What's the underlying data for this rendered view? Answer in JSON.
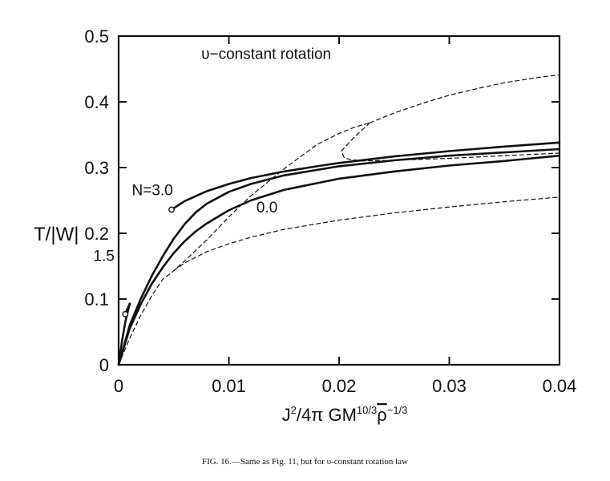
{
  "chart_data": {
    "type": "line",
    "title": "",
    "xlabel_parts": [
      "J",
      "2",
      "/4π GM",
      "10/3",
      "ρ",
      "−1/3"
    ],
    "ylabel": "T/|W|",
    "xlim": [
      0,
      0.04
    ],
    "ylim": [
      0,
      0.5
    ],
    "x_ticks": [
      0,
      0.01,
      0.02,
      0.03,
      0.04
    ],
    "x_tick_labels": [
      "0",
      "0.01",
      "0.02",
      "0.03",
      "0.04"
    ],
    "y_ticks": [
      0,
      0.1,
      0.2,
      0.3,
      0.4,
      0.5
    ],
    "y_tick_labels": [
      "0",
      "0.1",
      "0.2",
      "0.3",
      "0.4",
      "0.5"
    ],
    "grid": false,
    "annotations": [
      {
        "text": "υ−constant rotation",
        "x": 0.0075,
        "y": 0.465
      },
      {
        "text": "N=3.0",
        "x": 0.0012,
        "y": 0.258
      },
      {
        "text": "1.5",
        "x": -0.0023,
        "y": 0.158
      },
      {
        "text": "0.0",
        "x": 0.0125,
        "y": 0.232
      }
    ],
    "series": [
      {
        "name": "N=3.0",
        "style": "solid",
        "start_marker": "open-circle",
        "x": [
          0.0048,
          0.006,
          0.008,
          0.01,
          0.012,
          0.015,
          0.018,
          0.02,
          0.025,
          0.03,
          0.035,
          0.04
        ],
        "y": [
          0.236,
          0.249,
          0.264,
          0.275,
          0.284,
          0.294,
          0.302,
          0.307,
          0.317,
          0.325,
          0.332,
          0.338
        ]
      },
      {
        "name": "1.5",
        "style": "solid",
        "x": [
          0,
          0.001,
          0.002,
          0.003,
          0.004,
          0.005,
          0.006,
          0.007,
          0.008,
          0.01,
          0.012,
          0.015,
          0.02,
          0.025,
          0.03,
          0.035,
          0.04
        ],
        "y": [
          0,
          0.06,
          0.1,
          0.135,
          0.165,
          0.192,
          0.214,
          0.232,
          0.245,
          0.263,
          0.275,
          0.288,
          0.302,
          0.311,
          0.318,
          0.323,
          0.328
        ]
      },
      {
        "name": "0.0",
        "style": "solid",
        "x": [
          0,
          0.001,
          0.002,
          0.003,
          0.004,
          0.005,
          0.006,
          0.007,
          0.008,
          0.01,
          0.012,
          0.015,
          0.02,
          0.025,
          0.03,
          0.035,
          0.04
        ],
        "y": [
          0,
          0.055,
          0.092,
          0.123,
          0.148,
          0.17,
          0.188,
          0.203,
          0.215,
          0.235,
          0.25,
          0.266,
          0.283,
          0.294,
          0.303,
          0.31,
          0.318
        ]
      },
      {
        "name": "",
        "style": "solid",
        "x": [
          0,
          0.0003,
          0.0006,
          0.001
        ],
        "y": [
          0,
          0.035,
          0.065,
          0.093
        ]
      },
      {
        "name": "",
        "style": "solid",
        "start_marker": "open-circle",
        "x": [
          0.0006,
          0.0008,
          0.001
        ],
        "y": [
          0.077,
          0.085,
          0.092
        ]
      },
      {
        "name": "",
        "style": "dashed",
        "x": [
          0,
          0.001,
          0.002,
          0.003,
          0.004,
          0.005,
          0.006,
          0.008,
          0.01,
          0.012,
          0.015,
          0.018,
          0.02,
          0.0215,
          0.0228
        ],
        "y": [
          0,
          0.04,
          0.075,
          0.105,
          0.13,
          0.143,
          0.158,
          0.19,
          0.225,
          0.257,
          0.298,
          0.335,
          0.352,
          0.362,
          0.368
        ]
      },
      {
        "name": "",
        "style": "dashed",
        "x": [
          0.0228,
          0.025,
          0.028,
          0.03,
          0.033,
          0.035,
          0.038,
          0.04
        ],
        "y": [
          0.368,
          0.383,
          0.4,
          0.41,
          0.422,
          0.429,
          0.437,
          0.441
        ]
      },
      {
        "name": "",
        "style": "dashed",
        "x": [
          0.0228,
          0.0213,
          0.0202,
          0.0205,
          0.022,
          0.025,
          0.03,
          0.035,
          0.04
        ],
        "y": [
          0.368,
          0.345,
          0.325,
          0.314,
          0.31,
          0.311,
          0.314,
          0.318,
          0.322
        ]
      },
      {
        "name": "",
        "style": "dashed",
        "x": [
          0.005,
          0.006,
          0.008,
          0.01,
          0.012,
          0.015,
          0.02,
          0.025,
          0.03,
          0.035,
          0.04
        ],
        "y": [
          0.143,
          0.155,
          0.172,
          0.184,
          0.194,
          0.206,
          0.22,
          0.231,
          0.24,
          0.248,
          0.255
        ]
      }
    ]
  },
  "caption": "FIG. 16.—Same as Fig. 11, but for υ-constant rotation law"
}
